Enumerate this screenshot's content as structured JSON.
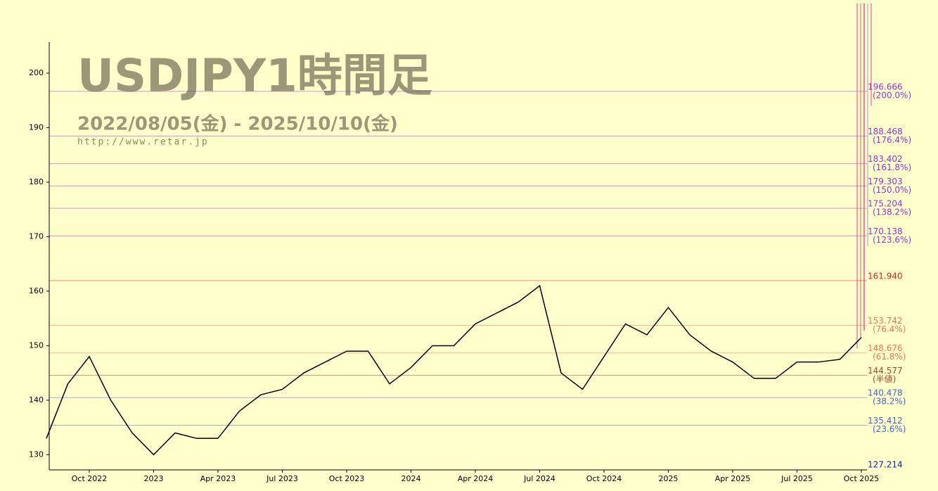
{
  "chart_data": {
    "type": "line",
    "title": "USDJPY1時間足",
    "subtitle": "2022/08/05(金) - 2025/10/10(金)",
    "source": "http://www.retar.jp",
    "x": [
      "2022-08",
      "2022-09",
      "2022-10",
      "2022-11",
      "2022-12",
      "2023-01",
      "2023-02",
      "2023-03",
      "2023-04",
      "2023-05",
      "2023-06",
      "2023-07",
      "2023-08",
      "2023-09",
      "2023-10",
      "2023-11",
      "2023-12",
      "2024-01",
      "2024-02",
      "2024-03",
      "2024-04",
      "2024-05",
      "2024-06",
      "2024-07",
      "2024-08",
      "2024-09",
      "2024-10",
      "2024-11",
      "2024-12",
      "2025-01",
      "2025-02",
      "2025-03",
      "2025-04",
      "2025-05",
      "2025-06",
      "2025-07",
      "2025-08",
      "2025-09",
      "2025-10"
    ],
    "series": [
      {
        "name": "USDJPY",
        "color": "#000000",
        "values": [
          133,
          143,
          148,
          140,
          134,
          130,
          134,
          133,
          133,
          138,
          141,
          142,
          145,
          147,
          149,
          149,
          143,
          146,
          150,
          150,
          154,
          156,
          158,
          161,
          145,
          142,
          148,
          154,
          152,
          157,
          152,
          149,
          147,
          144,
          144,
          147,
          147,
          147.5,
          151.5
        ]
      }
    ],
    "xticks": [
      {
        "value": "2022-10",
        "label": "Oct 2022"
      },
      {
        "value": "2023-01",
        "label": "2023"
      },
      {
        "value": "2023-04",
        "label": "Apr 2023"
      },
      {
        "value": "2023-07",
        "label": "Jul 2023"
      },
      {
        "value": "2023-10",
        "label": "Oct 2023"
      },
      {
        "value": "2024-01",
        "label": "2024"
      },
      {
        "value": "2024-04",
        "label": "Apr 2024"
      },
      {
        "value": "2024-07",
        "label": "Jul 2024"
      },
      {
        "value": "2024-10",
        "label": "Oct 2024"
      },
      {
        "value": "2025-01",
        "label": "2025"
      },
      {
        "value": "2025-04",
        "label": "Apr 2025"
      },
      {
        "value": "2025-07",
        "label": "Jul 2025"
      },
      {
        "value": "2025-10",
        "label": "Oct 2025"
      }
    ],
    "ylim": [
      127.214,
      205.68
    ],
    "yticks": [
      130,
      140,
      150,
      160,
      170,
      180,
      190,
      200
    ],
    "levels": [
      {
        "value": 196.666,
        "label": "196.666",
        "note": "(200.0%)",
        "color": "#9933cc"
      },
      {
        "value": 188.468,
        "label": "188.468",
        "note": "(176.4%)",
        "color": "#9933cc"
      },
      {
        "value": 183.402,
        "label": "183.402",
        "note": "(161.8%)",
        "color": "#9933cc"
      },
      {
        "value": 179.303,
        "label": "179.303",
        "note": "(150.0%)",
        "color": "#9933cc"
      },
      {
        "value": 175.204,
        "label": "175.204",
        "note": "(138.2%)",
        "color": "#9933cc"
      },
      {
        "value": 170.138,
        "label": "170.138",
        "note": "(123.6%)",
        "color": "#9933cc"
      },
      {
        "value": 161.94,
        "label": "161.940",
        "color": "#dd2222"
      },
      {
        "value": 153.742,
        "label": "153.742",
        "note": "(76.4%)",
        "color": "#ee7755"
      },
      {
        "value": 148.676,
        "label": "148.676",
        "note": "(61.8%)",
        "color": "#ee7755"
      },
      {
        "value": 144.577,
        "label": "144.577",
        "note": "(半値)",
        "color": "#aa4433"
      },
      {
        "value": 140.478,
        "label": "140.478",
        "note": "(38.2%)",
        "color": "#4466cc"
      },
      {
        "value": 135.412,
        "label": "135.412",
        "note": "(23.6%)",
        "color": "#4466cc"
      },
      {
        "value": 127.214,
        "label": "127.214",
        "color": "#1122aa"
      }
    ]
  }
}
